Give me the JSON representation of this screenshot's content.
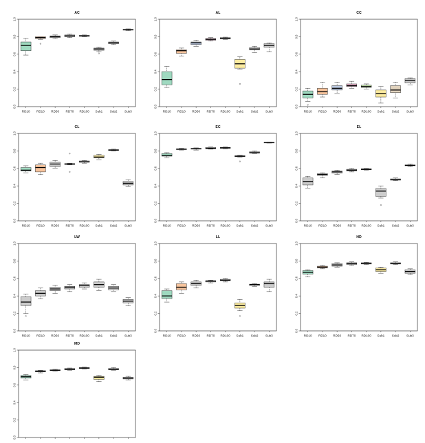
{
  "categories": [
    "RD10",
    "RD10",
    "RD50",
    "RD70",
    "RD100",
    "Sub1",
    "Sub2",
    "Sub3"
  ],
  "category_fills": [
    "#9fd9c0",
    "#f6c39c",
    "#b9c7e0",
    "#f2b8d2",
    "#c5e8a8",
    "#fbeba0",
    "#e0d2bd",
    "#cccccc"
  ],
  "yticks": [
    "0.0",
    "0.2",
    "0.4",
    "0.6",
    "0.8",
    "1.0"
  ],
  "chart_data": [
    {
      "type": "box",
      "title": "AC",
      "ylim": [
        0,
        1
      ],
      "boxes": [
        {
          "min": 0.59,
          "q1": 0.64,
          "median": 0.7,
          "q3": 0.74,
          "max": 0.78,
          "outliers": [],
          "fill": "#9fd9c0"
        },
        {
          "min": 0.77,
          "q1": 0.78,
          "median": 0.79,
          "q3": 0.8,
          "max": 0.8,
          "outliers": [
            0.72
          ],
          "fill": "#f6c39c"
        },
        {
          "min": 0.78,
          "q1": 0.79,
          "median": 0.8,
          "q3": 0.81,
          "max": 0.82,
          "outliers": [],
          "fill": "#cccccc"
        },
        {
          "min": 0.79,
          "q1": 0.8,
          "median": 0.81,
          "q3": 0.82,
          "max": 0.83,
          "outliers": [],
          "fill": "#cccccc"
        },
        {
          "min": 0.8,
          "q1": 0.805,
          "median": 0.81,
          "q3": 0.815,
          "max": 0.82,
          "outliers": [],
          "fill": "#cccccc"
        },
        {
          "min": 0.63,
          "q1": 0.645,
          "median": 0.66,
          "q3": 0.67,
          "max": 0.68,
          "outliers": [
            0.61
          ],
          "fill": "#cccccc"
        },
        {
          "min": 0.71,
          "q1": 0.72,
          "median": 0.73,
          "q3": 0.74,
          "max": 0.75,
          "outliers": [],
          "fill": "#cccccc"
        },
        {
          "min": 0.87,
          "q1": 0.875,
          "median": 0.88,
          "q3": 0.885,
          "max": 0.89,
          "outliers": [],
          "fill": "#cccccc"
        }
      ]
    },
    {
      "type": "box",
      "title": "AL",
      "ylim": [
        0,
        1
      ],
      "boxes": [
        {
          "min": 0.22,
          "q1": 0.25,
          "median": 0.31,
          "q3": 0.4,
          "max": 0.46,
          "outliers": [],
          "fill": "#9fd9c0"
        },
        {
          "min": 0.58,
          "q1": 0.61,
          "median": 0.64,
          "q3": 0.65,
          "max": 0.67,
          "outliers": [],
          "fill": "#f6c39c"
        },
        {
          "min": 0.69,
          "q1": 0.71,
          "median": 0.73,
          "q3": 0.74,
          "max": 0.76,
          "outliers": [],
          "fill": "#b9c7e0"
        },
        {
          "min": 0.75,
          "q1": 0.76,
          "median": 0.77,
          "q3": 0.78,
          "max": 0.79,
          "outliers": [],
          "fill": "#f2b8d2"
        },
        {
          "min": 0.77,
          "q1": 0.775,
          "median": 0.78,
          "q3": 0.79,
          "max": 0.795,
          "outliers": [],
          "fill": "#cccccc"
        },
        {
          "min": 0.43,
          "q1": 0.44,
          "median": 0.49,
          "q3": 0.54,
          "max": 0.57,
          "outliers": [
            0.26
          ],
          "fill": "#fbeba0"
        },
        {
          "min": 0.62,
          "q1": 0.65,
          "median": 0.66,
          "q3": 0.675,
          "max": 0.69,
          "outliers": [],
          "fill": "#cccccc"
        },
        {
          "min": 0.63,
          "q1": 0.68,
          "median": 0.7,
          "q3": 0.72,
          "max": 0.73,
          "outliers": [],
          "fill": "#cccccc"
        }
      ]
    },
    {
      "type": "box",
      "title": "CC",
      "ylim": [
        0,
        1
      ],
      "boxes": [
        {
          "min": 0.06,
          "q1": 0.1,
          "median": 0.14,
          "q3": 0.18,
          "max": 0.21,
          "outliers": [
            0.02
          ],
          "fill": "#9fd9c0"
        },
        {
          "min": 0.11,
          "q1": 0.14,
          "median": 0.17,
          "q3": 0.21,
          "max": 0.28,
          "outliers": [],
          "fill": "#f6c39c"
        },
        {
          "min": 0.15,
          "q1": 0.19,
          "median": 0.21,
          "q3": 0.24,
          "max": 0.28,
          "outliers": [],
          "fill": "#b9c7e0"
        },
        {
          "min": 0.21,
          "q1": 0.23,
          "median": 0.24,
          "q3": 0.26,
          "max": 0.29,
          "outliers": [],
          "fill": "#f2b8d2"
        },
        {
          "min": 0.2,
          "q1": 0.22,
          "median": 0.23,
          "q3": 0.245,
          "max": 0.26,
          "outliers": [],
          "fill": "#c5e8a8"
        },
        {
          "min": 0.04,
          "q1": 0.11,
          "median": 0.15,
          "q3": 0.19,
          "max": 0.23,
          "outliers": [],
          "fill": "#fbeba0"
        },
        {
          "min": 0.1,
          "q1": 0.16,
          "median": 0.19,
          "q3": 0.24,
          "max": 0.28,
          "outliers": [],
          "fill": "#e0d2bd"
        },
        {
          "min": 0.25,
          "q1": 0.27,
          "median": 0.3,
          "q3": 0.32,
          "max": 0.33,
          "outliers": [],
          "fill": "#cccccc"
        }
      ]
    },
    {
      "type": "box",
      "title": "CL",
      "ylim": [
        0,
        1
      ],
      "boxes": [
        {
          "min": 0.55,
          "q1": 0.57,
          "median": 0.58,
          "q3": 0.61,
          "max": 0.63,
          "outliers": [],
          "fill": "#9fd9c0"
        },
        {
          "min": 0.53,
          "q1": 0.56,
          "median": 0.61,
          "q3": 0.64,
          "max": 0.66,
          "outliers": [],
          "fill": "#f6c39c"
        },
        {
          "min": 0.6,
          "q1": 0.62,
          "median": 0.65,
          "q3": 0.67,
          "max": 0.69,
          "outliers": [],
          "fill": "#cccccc"
        },
        {
          "min": 0.64,
          "q1": 0.645,
          "median": 0.65,
          "q3": 0.655,
          "max": 0.66,
          "outliers": [
            0.77,
            0.56
          ],
          "fill": "#cccccc"
        },
        {
          "min": 0.66,
          "q1": 0.67,
          "median": 0.675,
          "q3": 0.685,
          "max": 0.69,
          "outliers": [],
          "fill": "#cccccc"
        },
        {
          "min": 0.7,
          "q1": 0.72,
          "median": 0.73,
          "q3": 0.75,
          "max": 0.76,
          "outliers": [],
          "fill": "#fbeba0"
        },
        {
          "min": 0.8,
          "q1": 0.805,
          "median": 0.81,
          "q3": 0.815,
          "max": 0.82,
          "outliers": [],
          "fill": "#cccccc"
        },
        {
          "min": 0.39,
          "q1": 0.41,
          "median": 0.43,
          "q3": 0.45,
          "max": 0.47,
          "outliers": [],
          "fill": "#cccccc"
        }
      ]
    },
    {
      "type": "box",
      "title": "EC",
      "ylim": [
        0,
        1
      ],
      "boxes": [
        {
          "min": 0.72,
          "q1": 0.74,
          "median": 0.75,
          "q3": 0.77,
          "max": 0.78,
          "outliers": [],
          "fill": "#9fd9c0"
        },
        {
          "min": 0.81,
          "q1": 0.815,
          "median": 0.82,
          "q3": 0.825,
          "max": 0.83,
          "outliers": [],
          "fill": "#cccccc"
        },
        {
          "min": 0.81,
          "q1": 0.82,
          "median": 0.825,
          "q3": 0.83,
          "max": 0.835,
          "outliers": [],
          "fill": "#cccccc"
        },
        {
          "min": 0.82,
          "q1": 0.825,
          "median": 0.83,
          "q3": 0.84,
          "max": 0.845,
          "outliers": [],
          "fill": "#cccccc"
        },
        {
          "min": 0.825,
          "q1": 0.83,
          "median": 0.835,
          "q3": 0.84,
          "max": 0.845,
          "outliers": [],
          "fill": "#cccccc"
        },
        {
          "min": 0.73,
          "q1": 0.735,
          "median": 0.74,
          "q3": 0.745,
          "max": 0.75,
          "outliers": [
            0.68
          ],
          "fill": "#cccccc"
        },
        {
          "min": 0.77,
          "q1": 0.775,
          "median": 0.78,
          "q3": 0.79,
          "max": 0.8,
          "outliers": [],
          "fill": "#cccccc"
        },
        {
          "min": 0.89,
          "q1": 0.893,
          "median": 0.895,
          "q3": 0.897,
          "max": 0.9,
          "outliers": [],
          "fill": "#cccccc"
        }
      ]
    },
    {
      "type": "box",
      "title": "EL",
      "ylim": [
        0,
        1
      ],
      "boxes": [
        {
          "min": 0.37,
          "q1": 0.41,
          "median": 0.45,
          "q3": 0.49,
          "max": 0.51,
          "outliers": [],
          "fill": "#cccccc"
        },
        {
          "min": 0.49,
          "q1": 0.52,
          "median": 0.53,
          "q3": 0.54,
          "max": 0.55,
          "outliers": [],
          "fill": "#cccccc"
        },
        {
          "min": 0.53,
          "q1": 0.545,
          "median": 0.56,
          "q3": 0.57,
          "max": 0.58,
          "outliers": [],
          "fill": "#cccccc"
        },
        {
          "min": 0.56,
          "q1": 0.57,
          "median": 0.58,
          "q3": 0.59,
          "max": 0.6,
          "outliers": [],
          "fill": "#cccccc"
        },
        {
          "min": 0.58,
          "q1": 0.585,
          "median": 0.59,
          "q3": 0.595,
          "max": 0.6,
          "outliers": [],
          "fill": "#cccccc"
        },
        {
          "min": 0.26,
          "q1": 0.28,
          "median": 0.34,
          "q3": 0.37,
          "max": 0.4,
          "outliers": [
            0.18
          ],
          "fill": "#cccccc"
        },
        {
          "min": 0.46,
          "q1": 0.465,
          "median": 0.47,
          "q3": 0.48,
          "max": 0.49,
          "outliers": [],
          "fill": "#cccccc"
        },
        {
          "min": 0.62,
          "q1": 0.63,
          "median": 0.635,
          "q3": 0.64,
          "max": 0.65,
          "outliers": [],
          "fill": "#cccccc"
        }
      ]
    },
    {
      "type": "box",
      "title": "LW",
      "ylim": [
        0,
        1
      ],
      "boxes": [
        {
          "min": 0.2,
          "q1": 0.29,
          "median": 0.33,
          "q3": 0.39,
          "max": 0.42,
          "outliers": [
            0.17
          ],
          "fill": "#cccccc"
        },
        {
          "min": 0.37,
          "q1": 0.4,
          "median": 0.43,
          "q3": 0.46,
          "max": 0.49,
          "outliers": [],
          "fill": "#cccccc"
        },
        {
          "min": 0.43,
          "q1": 0.46,
          "median": 0.48,
          "q3": 0.5,
          "max": 0.52,
          "outliers": [],
          "fill": "#cccccc"
        },
        {
          "min": 0.45,
          "q1": 0.48,
          "median": 0.5,
          "q3": 0.51,
          "max": 0.53,
          "outliers": [],
          "fill": "#cccccc"
        },
        {
          "min": 0.48,
          "q1": 0.5,
          "median": 0.52,
          "q3": 0.53,
          "max": 0.55,
          "outliers": [],
          "fill": "#cccccc"
        },
        {
          "min": 0.46,
          "q1": 0.5,
          "median": 0.53,
          "q3": 0.56,
          "max": 0.59,
          "outliers": [],
          "fill": "#cccccc"
        },
        {
          "min": 0.45,
          "q1": 0.47,
          "median": 0.49,
          "q3": 0.51,
          "max": 0.53,
          "outliers": [],
          "fill": "#cccccc"
        },
        {
          "min": 0.29,
          "q1": 0.32,
          "median": 0.34,
          "q3": 0.36,
          "max": 0.38,
          "outliers": [],
          "fill": "#cccccc"
        }
      ]
    },
    {
      "type": "box",
      "title": "LL",
      "ylim": [
        0,
        1
      ],
      "boxes": [
        {
          "min": 0.33,
          "q1": 0.37,
          "median": 0.4,
          "q3": 0.46,
          "max": 0.48,
          "outliers": [],
          "fill": "#9fd9c0"
        },
        {
          "min": 0.43,
          "q1": 0.47,
          "median": 0.5,
          "q3": 0.54,
          "max": 0.56,
          "outliers": [],
          "fill": "#f6c39c"
        },
        {
          "min": 0.49,
          "q1": 0.52,
          "median": 0.54,
          "q3": 0.56,
          "max": 0.58,
          "outliers": [],
          "fill": "#cccccc"
        },
        {
          "min": 0.55,
          "q1": 0.56,
          "median": 0.57,
          "q3": 0.575,
          "max": 0.58,
          "outliers": [],
          "fill": "#cccccc"
        },
        {
          "min": 0.56,
          "q1": 0.575,
          "median": 0.58,
          "q3": 0.59,
          "max": 0.6,
          "outliers": [],
          "fill": "#cccccc"
        },
        {
          "min": 0.23,
          "q1": 0.26,
          "median": 0.29,
          "q3": 0.32,
          "max": 0.36,
          "outliers": [
            0.17
          ],
          "fill": "#fbeba0"
        },
        {
          "min": 0.51,
          "q1": 0.52,
          "median": 0.53,
          "q3": 0.535,
          "max": 0.54,
          "outliers": [],
          "fill": "#cccccc"
        },
        {
          "min": 0.45,
          "q1": 0.5,
          "median": 0.54,
          "q3": 0.56,
          "max": 0.59,
          "outliers": [],
          "fill": "#cccccc"
        }
      ]
    },
    {
      "type": "box",
      "title": "HD",
      "ylim": [
        0,
        1
      ],
      "boxes": [
        {
          "min": 0.62,
          "q1": 0.65,
          "median": 0.67,
          "q3": 0.69,
          "max": 0.7,
          "outliers": [],
          "fill": "#9fd9c0"
        },
        {
          "min": 0.71,
          "q1": 0.72,
          "median": 0.73,
          "q3": 0.74,
          "max": 0.75,
          "outliers": [],
          "fill": "#f6c39c"
        },
        {
          "min": 0.73,
          "q1": 0.74,
          "median": 0.755,
          "q3": 0.77,
          "max": 0.78,
          "outliers": [],
          "fill": "#cccccc"
        },
        {
          "min": 0.75,
          "q1": 0.76,
          "median": 0.77,
          "q3": 0.78,
          "max": 0.79,
          "outliers": [],
          "fill": "#cccccc"
        },
        {
          "min": 0.76,
          "q1": 0.765,
          "median": 0.77,
          "q3": 0.78,
          "max": 0.785,
          "outliers": [],
          "fill": "#cccccc"
        },
        {
          "min": 0.66,
          "q1": 0.68,
          "median": 0.7,
          "q3": 0.72,
          "max": 0.73,
          "outliers": [],
          "fill": "#fbeba0"
        },
        {
          "min": 0.76,
          "q1": 0.765,
          "median": 0.77,
          "q3": 0.78,
          "max": 0.79,
          "outliers": [],
          "fill": "#cccccc"
        },
        {
          "min": 0.64,
          "q1": 0.66,
          "median": 0.68,
          "q3": 0.7,
          "max": 0.71,
          "outliers": [],
          "fill": "#cccccc"
        }
      ]
    },
    {
      "type": "box",
      "title": "MD",
      "ylim": [
        0,
        1
      ],
      "boxes": [
        {
          "min": 0.66,
          "q1": 0.68,
          "median": 0.695,
          "q3": 0.71,
          "max": 0.72,
          "outliers": [],
          "fill": "#9fd9c0"
        },
        {
          "min": 0.74,
          "q1": 0.75,
          "median": 0.755,
          "q3": 0.765,
          "max": 0.77,
          "outliers": [],
          "fill": "#cccccc"
        },
        {
          "min": 0.76,
          "q1": 0.765,
          "median": 0.77,
          "q3": 0.775,
          "max": 0.78,
          "outliers": [],
          "fill": "#cccccc"
        },
        {
          "min": 0.77,
          "q1": 0.775,
          "median": 0.78,
          "q3": 0.79,
          "max": 0.795,
          "outliers": [],
          "fill": "#cccccc"
        },
        {
          "min": 0.785,
          "q1": 0.79,
          "median": 0.795,
          "q3": 0.8,
          "max": 0.805,
          "outliers": [],
          "fill": "#cccccc"
        },
        {
          "min": 0.64,
          "q1": 0.665,
          "median": 0.69,
          "q3": 0.7,
          "max": 0.71,
          "outliers": [],
          "fill": "#fbeba0"
        },
        {
          "min": 0.77,
          "q1": 0.775,
          "median": 0.78,
          "q3": 0.79,
          "max": 0.8,
          "outliers": [],
          "fill": "#cccccc"
        },
        {
          "min": 0.66,
          "q1": 0.67,
          "median": 0.68,
          "q3": 0.69,
          "max": 0.7,
          "outliers": [],
          "fill": "#cccccc"
        }
      ]
    }
  ]
}
